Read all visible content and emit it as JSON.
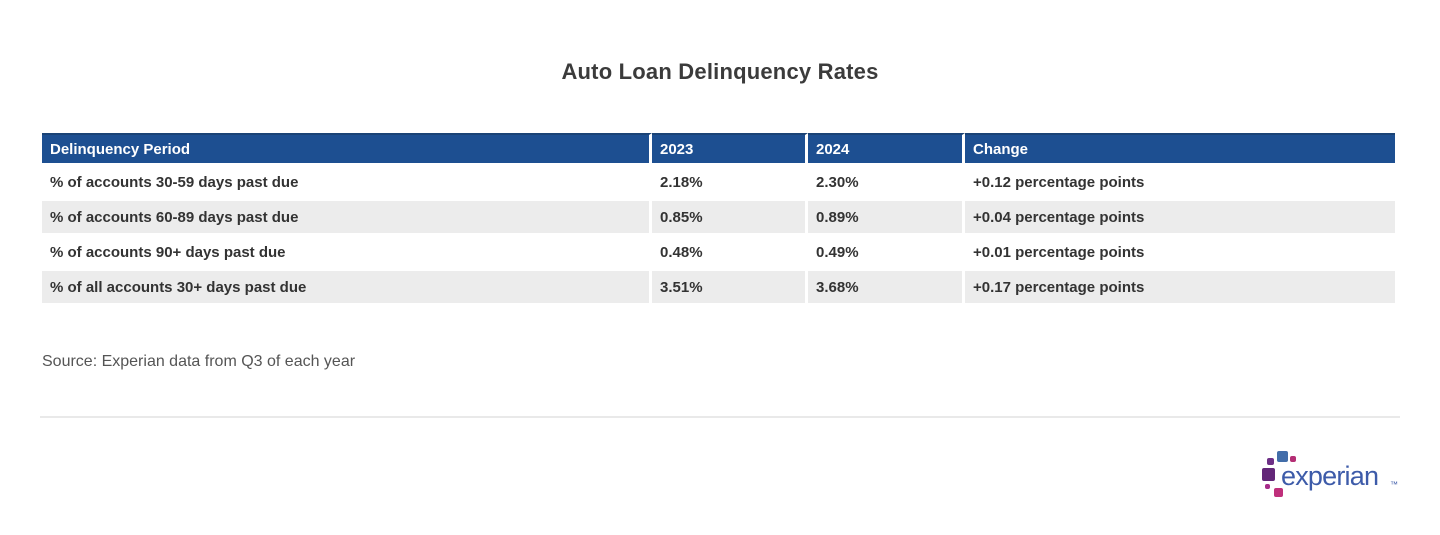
{
  "page": {
    "title": "Auto Loan Delinquency Rates"
  },
  "chart_data": {
    "type": "table",
    "title": "Auto Loan Delinquency Rates",
    "columns": [
      "Delinquency Period",
      "2023",
      "2024",
      "Change"
    ],
    "rows": [
      [
        "% of accounts 30-59 days past due",
        "2.18%",
        "2.30%",
        "+0.12 percentage points"
      ],
      [
        "% of accounts 60-89 days past due",
        "0.85%",
        "0.89%",
        "+0.04 percentage points"
      ],
      [
        "% of accounts 90+ days past due",
        "0.48%",
        "0.49%",
        "+0.01 percentage points"
      ],
      [
        "% of all accounts 30+ days past due",
        "3.51%",
        "3.68%",
        "+0.17 percentage points"
      ]
    ],
    "values_numeric": {
      "y2023": [
        2.18,
        0.85,
        0.48,
        3.51
      ],
      "y2024": [
        2.3,
        0.89,
        0.49,
        3.68
      ],
      "change_points": [
        0.12,
        0.04,
        0.01,
        0.17
      ]
    },
    "source": "Source: Experian data from Q3 of each year",
    "layout": {
      "header_bg": "#1d4f91",
      "alt_row_bg": "#ececec",
      "grid": "white 3px gaps between cells"
    }
  },
  "source": {
    "text": "Source: Experian data from Q3 of each year"
  },
  "logo": {
    "wordmark": "experian",
    "trademark": "™"
  },
  "colors": {
    "header_bg": "#1d4f91",
    "header_text": "#ffffff",
    "row_alt_bg": "#ececec",
    "body_text": "#333333",
    "title_text": "#3b3b3b",
    "source_text": "#555555",
    "divider": "#e9e9e9",
    "logo_blue": "#426da9",
    "logo_purple": "#632678",
    "logo_magenta": "#bf2f7b",
    "logo_wordmark": "#3d5ba9"
  }
}
